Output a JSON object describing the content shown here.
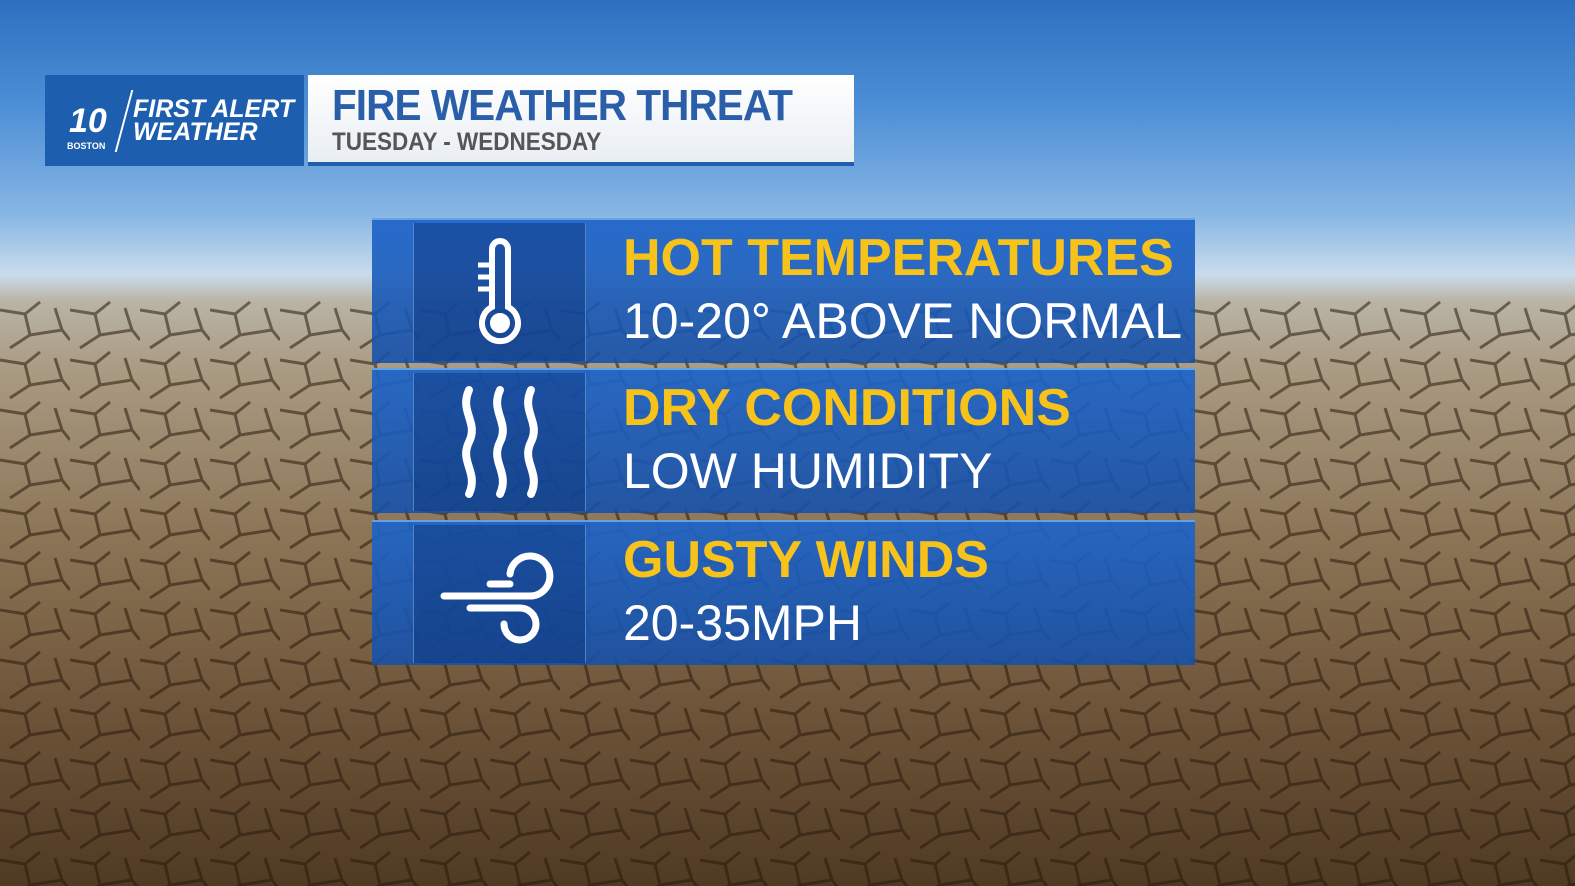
{
  "logo": {
    "station": "10",
    "city": "BOSTON",
    "brand_line1": "FIRST ALERT",
    "brand_line2": "WEATHER"
  },
  "header": {
    "title": "FIRE WEATHER THREAT",
    "subtitle": "TUESDAY - WEDNESDAY"
  },
  "threats": [
    {
      "icon": "thermometer-icon",
      "heading": "HOT TEMPERATURES",
      "detail": "10-20° ABOVE NORMAL"
    },
    {
      "icon": "humidity-waves-icon",
      "heading": "DRY CONDITIONS",
      "detail": "LOW HUMIDITY"
    },
    {
      "icon": "wind-icon",
      "heading": "GUSTY WINDS",
      "detail": "20-35MPH"
    }
  ],
  "colors": {
    "brand_blue": "#1d5fae",
    "heading_yellow": "#f7c21a"
  }
}
